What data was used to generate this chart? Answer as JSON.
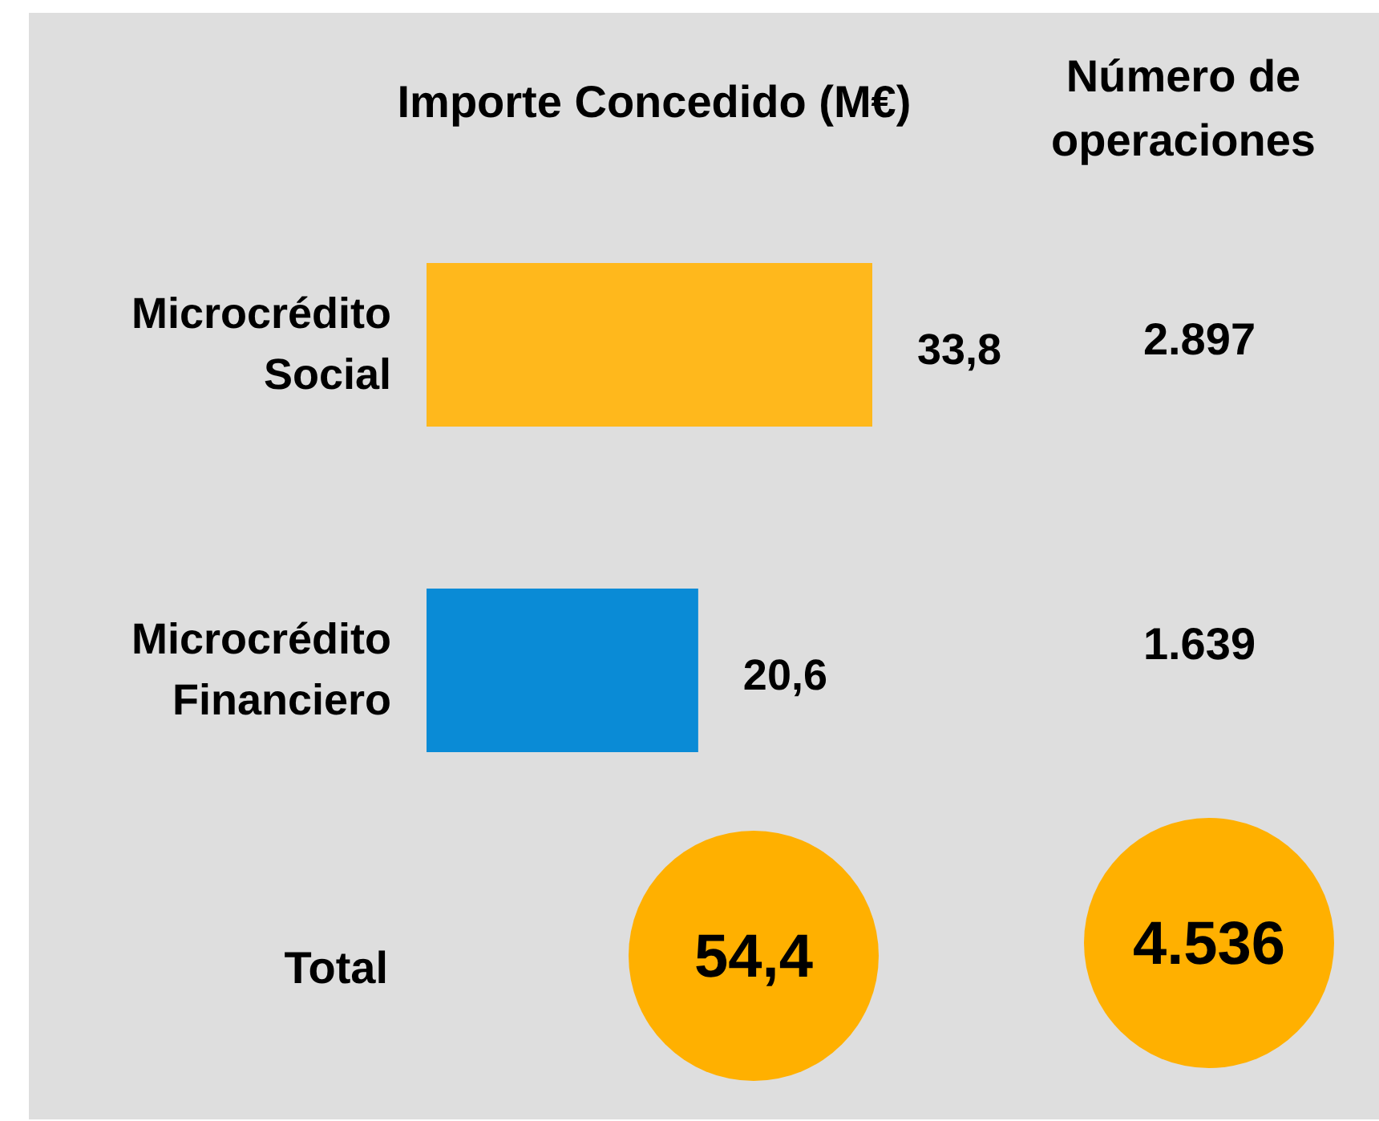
{
  "chart_data": {
    "type": "bar",
    "orientation": "horizontal",
    "title": "Importe Concedido (M€)",
    "categories": [
      "Microcrédito Social",
      "Microcrédito Financiero"
    ],
    "values": [
      33.8,
      20.6
    ],
    "colors": [
      "#ffb81c",
      "#0a8bd6"
    ],
    "value_labels": [
      "33,8",
      "20,6"
    ],
    "annotations": [
      "Número de operaciones",
      "2.897",
      "1.639",
      "Total",
      "54,4",
      "4.536"
    ]
  }
}
